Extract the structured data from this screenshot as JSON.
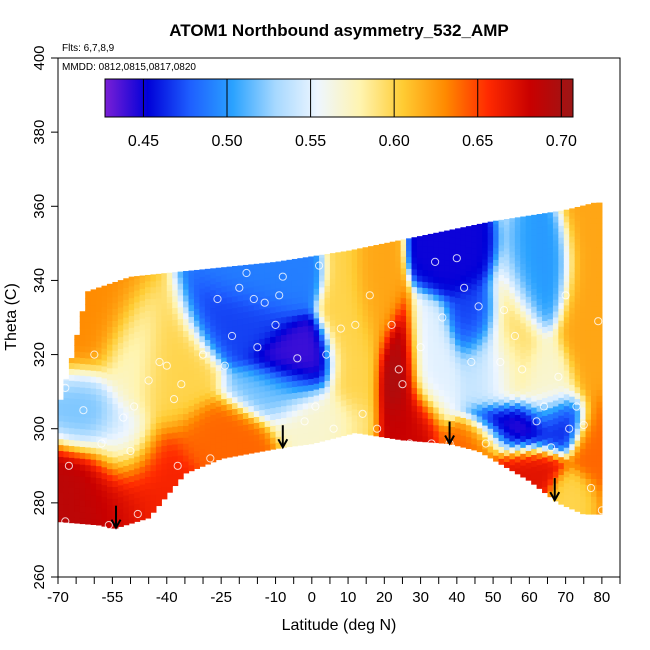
{
  "chart_data": {
    "type": "heatmap",
    "title": "ATOM1 Northbound asymmetry_532_AMP",
    "flights_note": "Flts: 6,7,8,9",
    "dates_note": "MMDD: 0812,0815,0817,0820",
    "xlabel": "Latitude (deg N)",
    "ylabel": "Theta (C)",
    "xlim": [
      -70,
      85
    ],
    "ylim": [
      260,
      400
    ],
    "x_ticks": [
      -70,
      -55,
      -40,
      -25,
      -10,
      0,
      10,
      20,
      30,
      40,
      50,
      60,
      70,
      80
    ],
    "x_tick_labels": [
      "-70",
      "-55",
      "-40",
      "-25",
      "-10",
      "0",
      "10",
      "20",
      "30",
      "40",
      "50",
      "60",
      "70",
      "80"
    ],
    "x_minor_ticks": [
      -65,
      -60,
      -50,
      -45,
      -35,
      -30,
      -20,
      -15,
      -5,
      5,
      15,
      25,
      35,
      45,
      55,
      65,
      75,
      85
    ],
    "y_ticks": [
      260,
      280,
      300,
      320,
      340,
      360,
      380,
      400
    ],
    "y_tick_labels": [
      "260",
      "280",
      "300",
      "320",
      "340",
      "360",
      "380",
      "400"
    ],
    "colorbar": {
      "range": [
        0.427,
        0.707
      ],
      "ticks": [
        0.45,
        0.5,
        0.55,
        0.6,
        0.65,
        0.7
      ],
      "tick_labels": [
        "0.45",
        "0.50",
        "0.55",
        "0.60",
        "0.65",
        "0.70"
      ],
      "colors": [
        "#7a1fd6",
        "#0000d8",
        "#1e5fff",
        "#2aa2ff",
        "#a6d8ff",
        "#eef6ff",
        "#fff4b0",
        "#ffcc33",
        "#ff8a00",
        "#ff2a00",
        "#c80000",
        "#9c1616"
      ]
    },
    "field_extent": {
      "top": [
        [
          -62,
          337
        ],
        [
          -50,
          341
        ],
        [
          -30,
          343
        ],
        [
          -10,
          345
        ],
        [
          10,
          348
        ],
        [
          30,
          352
        ],
        [
          50,
          356
        ],
        [
          70,
          359
        ],
        [
          78,
          361
        ]
      ],
      "bottom": [
        [
          -70,
          275
        ],
        [
          -58,
          274
        ],
        [
          -55,
          273
        ],
        [
          -45,
          276
        ],
        [
          -35,
          288
        ],
        [
          -25,
          292
        ],
        [
          -8,
          295
        ],
        [
          0,
          296
        ],
        [
          12,
          299
        ],
        [
          25,
          297
        ],
        [
          38,
          296
        ],
        [
          46,
          294
        ],
        [
          60,
          286
        ],
        [
          68,
          280
        ],
        [
          75,
          277
        ],
        [
          80,
          277
        ]
      ],
      "right": [
        [
          80,
          277
        ],
        [
          80,
          300
        ],
        [
          80,
          330
        ],
        [
          78,
          361
        ]
      ],
      "left": [
        [
          -62,
          337
        ],
        [
          -66,
          320
        ],
        [
          -70,
          305
        ],
        [
          -70,
          275
        ]
      ]
    },
    "field_blobs": [
      {
        "lat": -65,
        "theta": 280,
        "value": 0.69,
        "spread": 7,
        "spread_theta": 10
      },
      {
        "lat": -56,
        "theta": 282,
        "value": 0.68,
        "spread": 8,
        "spread_theta": 9
      },
      {
        "lat": -45,
        "theta": 286,
        "value": 0.66,
        "spread": 8,
        "spread_theta": 10
      },
      {
        "lat": -62,
        "theta": 305,
        "value": 0.52,
        "spread": 6,
        "spread_theta": 8
      },
      {
        "lat": -52,
        "theta": 296,
        "value": 0.54,
        "spread": 6,
        "spread_theta": 8
      },
      {
        "lat": -50,
        "theta": 318,
        "value": 0.57,
        "spread": 6,
        "spread_theta": 10
      },
      {
        "lat": -40,
        "theta": 315,
        "value": 0.6,
        "spread": 8,
        "spread_theta": 10
      },
      {
        "lat": -60,
        "theta": 328,
        "value": 0.63,
        "spread": 8,
        "spread_theta": 10
      },
      {
        "lat": -25,
        "theta": 298,
        "value": 0.64,
        "spread": 8,
        "spread_theta": 6
      },
      {
        "lat": -20,
        "theta": 330,
        "value": 0.47,
        "spread": 8,
        "spread_theta": 7
      },
      {
        "lat": -15,
        "theta": 340,
        "value": 0.49,
        "spread": 8,
        "spread_theta": 6
      },
      {
        "lat": -5,
        "theta": 318,
        "value": 0.44,
        "spread": 7,
        "spread_theta": 6
      },
      {
        "lat": -10,
        "theta": 310,
        "value": 0.52,
        "spread": 8,
        "spread_theta": 5
      },
      {
        "lat": 2,
        "theta": 303,
        "value": 0.57,
        "spread": 8,
        "spread_theta": 5
      },
      {
        "lat": 12,
        "theta": 320,
        "value": 0.6,
        "spread": 5,
        "spread_theta": 15
      },
      {
        "lat": 18,
        "theta": 335,
        "value": 0.62,
        "spread": 4,
        "spread_theta": 10
      },
      {
        "lat": 24,
        "theta": 315,
        "value": 0.7,
        "spread": 4,
        "spread_theta": 10
      },
      {
        "lat": 27,
        "theta": 302,
        "value": 0.68,
        "spread": 5,
        "spread_theta": 7
      },
      {
        "lat": 33,
        "theta": 318,
        "value": 0.55,
        "spread": 5,
        "spread_theta": 10
      },
      {
        "lat": 40,
        "theta": 345,
        "value": 0.45,
        "spread": 6,
        "spread_theta": 6
      },
      {
        "lat": 45,
        "theta": 330,
        "value": 0.47,
        "spread": 5,
        "spread_theta": 7
      },
      {
        "lat": 50,
        "theta": 318,
        "value": 0.54,
        "spread": 6,
        "spread_theta": 8
      },
      {
        "lat": 55,
        "theta": 325,
        "value": 0.6,
        "spread": 5,
        "spread_theta": 12
      },
      {
        "lat": 62,
        "theta": 340,
        "value": 0.5,
        "spread": 6,
        "spread_theta": 8
      },
      {
        "lat": 65,
        "theta": 312,
        "value": 0.57,
        "spread": 5,
        "spread_theta": 8
      },
      {
        "lat": 56,
        "theta": 300,
        "value": 0.44,
        "spread": 7,
        "spread_theta": 5
      },
      {
        "lat": 68,
        "theta": 302,
        "value": 0.46,
        "spread": 5,
        "spread_theta": 5
      },
      {
        "lat": 58,
        "theta": 289,
        "value": 0.67,
        "spread": 7,
        "spread_theta": 5
      },
      {
        "lat": 45,
        "theta": 296,
        "value": 0.64,
        "spread": 6,
        "spread_theta": 4
      },
      {
        "lat": 78,
        "theta": 295,
        "value": 0.64,
        "spread": 4,
        "spread_theta": 8
      },
      {
        "lat": 76,
        "theta": 330,
        "value": 0.62,
        "spread": 5,
        "spread_theta": 14
      },
      {
        "lat": 72,
        "theta": 283,
        "value": 0.6,
        "spread": 4,
        "spread_theta": 4
      }
    ],
    "sample_points": [
      [
        -68,
        311
      ],
      [
        -67,
        290
      ],
      [
        -68,
        275
      ],
      [
        -63,
        305
      ],
      [
        -60,
        320
      ],
      [
        -58,
        296
      ],
      [
        -56,
        274
      ],
      [
        -52,
        303
      ],
      [
        -50,
        294
      ],
      [
        -49,
        306
      ],
      [
        -48,
        277
      ],
      [
        -45,
        313
      ],
      [
        -42,
        318
      ],
      [
        -40,
        317
      ],
      [
        -38,
        308
      ],
      [
        -37,
        290
      ],
      [
        -36,
        312
      ],
      [
        -30,
        320
      ],
      [
        -28,
        292
      ],
      [
        -26,
        335
      ],
      [
        -24,
        317
      ],
      [
        -22,
        325
      ],
      [
        -20,
        338
      ],
      [
        -18,
        342
      ],
      [
        -16,
        335
      ],
      [
        -15,
        322
      ],
      [
        -13,
        334
      ],
      [
        -12,
        346
      ],
      [
        -10,
        328
      ],
      [
        -9,
        336
      ],
      [
        -8,
        341
      ],
      [
        -4,
        319
      ],
      [
        -2,
        302
      ],
      [
        1,
        306
      ],
      [
        2,
        344
      ],
      [
        4,
        320
      ],
      [
        6,
        300
      ],
      [
        8,
        327
      ],
      [
        12,
        328
      ],
      [
        14,
        304
      ],
      [
        16,
        336
      ],
      [
        18,
        300
      ],
      [
        22,
        328
      ],
      [
        24,
        316
      ],
      [
        25,
        312
      ],
      [
        27,
        296
      ],
      [
        30,
        322
      ],
      [
        33,
        296
      ],
      [
        34,
        345
      ],
      [
        36,
        330
      ],
      [
        38,
        296
      ],
      [
        40,
        346
      ],
      [
        42,
        338
      ],
      [
        44,
        318
      ],
      [
        46,
        333
      ],
      [
        48,
        296
      ],
      [
        52,
        318
      ],
      [
        53,
        332
      ],
      [
        56,
        325
      ],
      [
        58,
        316
      ],
      [
        62,
        302
      ],
      [
        64,
        306
      ],
      [
        66,
        295
      ],
      [
        68,
        314
      ],
      [
        70,
        336
      ],
      [
        71,
        300
      ],
      [
        73,
        306
      ],
      [
        75,
        301
      ],
      [
        77,
        284
      ],
      [
        79,
        329
      ],
      [
        80,
        278
      ]
    ],
    "arrow_latitudes": [
      -54,
      -8,
      38,
      67
    ]
  }
}
